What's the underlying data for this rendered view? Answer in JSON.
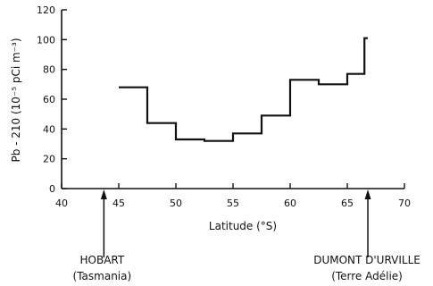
{
  "chart_data": {
    "type": "line",
    "step": true,
    "xlabel": "Latitude (°S)",
    "ylabel": "Pb - 210 (10⁻⁵ pCi m⁻³)",
    "xlim": [
      40,
      70
    ],
    "ylim": [
      0,
      120
    ],
    "x_ticks": [
      40,
      45,
      50,
      55,
      60,
      65,
      70
    ],
    "y_ticks": [
      0,
      20,
      40,
      60,
      80,
      100,
      120
    ],
    "grid": false,
    "series": [
      {
        "segments": [
          {
            "x_start": 45.0,
            "x_end": 47.5,
            "value": 68
          },
          {
            "x_start": 47.5,
            "x_end": 50.0,
            "value": 44
          },
          {
            "x_start": 50.0,
            "x_end": 52.5,
            "value": 33
          },
          {
            "x_start": 52.5,
            "x_end": 55.0,
            "value": 32
          },
          {
            "x_start": 55.0,
            "x_end": 57.5,
            "value": 37
          },
          {
            "x_start": 57.5,
            "x_end": 60.0,
            "value": 49
          },
          {
            "x_start": 60.0,
            "x_end": 62.5,
            "value": 73
          },
          {
            "x_start": 62.5,
            "x_end": 65.0,
            "value": 70
          },
          {
            "x_start": 65.0,
            "x_end": 66.5,
            "value": 77
          },
          {
            "x_start": 66.5,
            "x_end": 66.8,
            "value": 101
          }
        ]
      }
    ],
    "annotations": [
      {
        "name": "hobart",
        "x": 43.7,
        "line1": "HOBART",
        "line2": "(Tasmania)"
      },
      {
        "name": "dumont-durville",
        "x": 66.8,
        "line1": "DUMONT D'URVILLE",
        "line2": "(Terre Adélie)"
      }
    ]
  }
}
